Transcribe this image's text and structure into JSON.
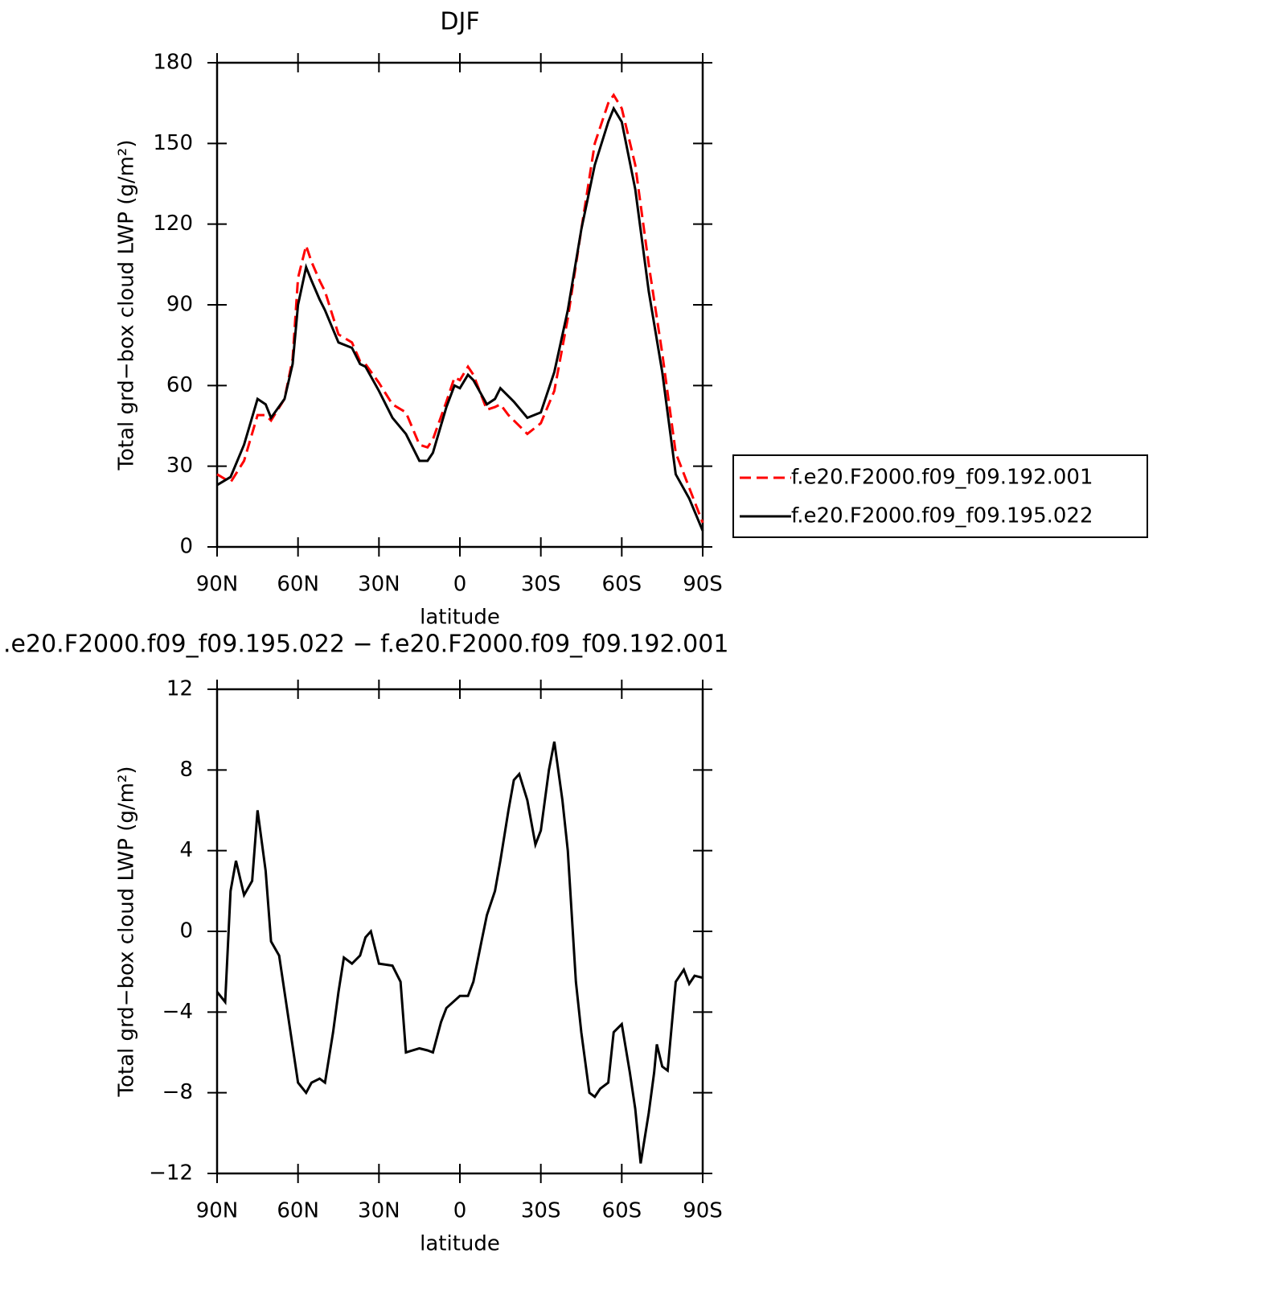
{
  "chart_data": [
    {
      "type": "line",
      "title": "DJF",
      "xlabel": "latitude",
      "ylabel": "Total grd−box cloud LWP (g/m²)",
      "x": [
        90,
        85,
        80,
        75,
        72,
        70,
        65,
        62,
        60,
        57,
        55,
        52,
        50,
        45,
        40,
        37,
        35,
        30,
        25,
        20,
        15,
        12,
        10,
        5,
        2,
        0,
        -3,
        -5,
        -10,
        -13,
        -15,
        -18,
        -20,
        -25,
        -30,
        -35,
        -40,
        -45,
        -50,
        -55,
        -57,
        -60,
        -65,
        -70,
        -75,
        -80,
        -85,
        -90
      ],
      "series": [
        {
          "name": "f.e20.F2000.f09_f09.192.001",
          "color": "#ff0000",
          "dashed": true,
          "values": [
            27,
            24,
            32,
            49,
            49,
            47,
            55,
            70,
            100,
            112,
            106,
            99,
            95,
            79,
            76,
            69,
            68,
            61,
            53,
            50,
            38,
            37,
            40,
            54,
            63,
            62,
            67,
            64,
            51,
            52,
            53,
            49,
            47,
            42,
            46,
            58,
            85,
            118,
            150,
            165,
            168,
            163,
            142,
            105,
            72,
            35,
            22,
            9
          ]
        },
        {
          "name": "f.e20.F2000.f09_f09.195.022",
          "color": "#000000",
          "dashed": false,
          "values": [
            23,
            26,
            38,
            55,
            53,
            48,
            55,
            68,
            90,
            104,
            99,
            92,
            88,
            76,
            74,
            68,
            67,
            58,
            48,
            42,
            32,
            32,
            35,
            52,
            60,
            59,
            64,
            62,
            53,
            55,
            59,
            56,
            54,
            48,
            50,
            65,
            88,
            118,
            142,
            158,
            163,
            158,
            133,
            95,
            65,
            27,
            18,
            6
          ]
        }
      ],
      "xlim": [
        90,
        -90
      ],
      "xticks": [
        {
          "value": 90,
          "label": "90N"
        },
        {
          "value": 60,
          "label": "60N"
        },
        {
          "value": 30,
          "label": "30N"
        },
        0,
        {
          "value": -30,
          "label": "30S"
        },
        {
          "value": -60,
          "label": "60S"
        },
        {
          "value": -90,
          "label": "90S"
        }
      ],
      "ylim": [
        0,
        180
      ],
      "yticks": [
        0,
        30,
        60,
        90,
        120,
        150,
        180
      ],
      "legend": "outside-right"
    },
    {
      "type": "line",
      "title": ".e20.F2000.f09_f09.195.022 − f.e20.F2000.f09_f09.192.001",
      "xlabel": "latitude",
      "ylabel": "Total grd−box cloud LWP (g/m²)",
      "x": [
        90,
        87,
        85,
        83,
        80,
        77,
        75,
        72,
        70,
        67,
        65,
        60,
        57,
        55,
        52,
        50,
        47,
        45,
        43,
        40,
        37,
        35,
        33,
        30,
        25,
        22,
        20,
        15,
        12,
        10,
        7,
        5,
        0,
        -3,
        -5,
        -8,
        -10,
        -13,
        -15,
        -18,
        -20,
        -22,
        -25,
        -28,
        -30,
        -33,
        -35,
        -38,
        -40,
        -43,
        -45,
        -48,
        -50,
        -52,
        -55,
        -57,
        -60,
        -63,
        -65,
        -67,
        -70,
        -72,
        -73,
        -75,
        -77,
        -80,
        -83,
        -85,
        -87,
        -90
      ],
      "series": [
        {
          "color": "#000000",
          "dashed": false,
          "values": [
            -3,
            -3.5,
            2,
            3.5,
            1.8,
            2.5,
            6,
            3,
            -0.5,
            -1.2,
            -3,
            -7.5,
            -8,
            -7.5,
            -7.3,
            -7.5,
            -5,
            -3,
            -1.3,
            -1.6,
            -1.2,
            -0.3,
            0,
            -1.6,
            -1.7,
            -2.5,
            -6,
            -5.8,
            -5.9,
            -6,
            -4.5,
            -3.8,
            -3.2,
            -3.2,
            -2.5,
            -0.5,
            0.8,
            2,
            3.5,
            6,
            7.5,
            7.8,
            6.5,
            4.3,
            5,
            8,
            9.4,
            6.5,
            4,
            -2.5,
            -5,
            -8,
            -8.2,
            -7.8,
            -7.5,
            -5,
            -4.6,
            -7,
            -8.8,
            -11.5,
            -9,
            -7,
            -5.6,
            -6.7,
            -6.9,
            -2.5,
            -1.9,
            -2.6,
            -2.2,
            -2.3
          ]
        }
      ],
      "xlim": [
        90,
        -90
      ],
      "xticks": [
        {
          "value": 90,
          "label": "90N"
        },
        {
          "value": 60,
          "label": "60N"
        },
        {
          "value": 30,
          "label": "30N"
        },
        0,
        {
          "value": -30,
          "label": "30S"
        },
        {
          "value": -60,
          "label": "60S"
        },
        {
          "value": -90,
          "label": "90S"
        }
      ],
      "ylim": [
        -12,
        12
      ],
      "yticks": [
        {
          "value": -12,
          "label": "−12"
        },
        {
          "value": -8,
          "label": "−8"
        },
        {
          "value": -4,
          "label": "−4"
        },
        0,
        4,
        8,
        12
      ]
    }
  ]
}
